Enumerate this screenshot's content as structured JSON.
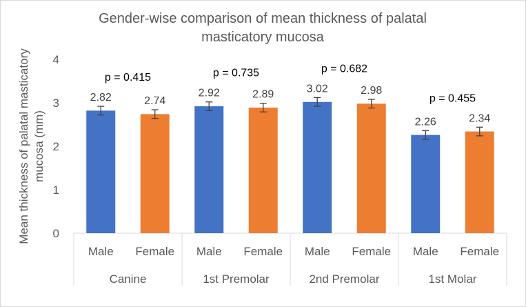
{
  "chart_data": {
    "type": "bar",
    "title_lines": [
      "Gender-wise comparison of mean thickness of palatal",
      "masticatory mucosa"
    ],
    "ylabel_lines": [
      "Mean thickness of palatal masticatory",
      "mucosa (mm)"
    ],
    "xlabel": "",
    "ylim": [
      0,
      4
    ],
    "yticks": [
      0,
      1,
      2,
      3,
      4
    ],
    "grid": false,
    "groups": [
      {
        "name": "Canine",
        "p_value": "p = 0.415",
        "bars": [
          {
            "label": "Male",
            "value": 2.82,
            "value_label": "2.82",
            "error": 0.1,
            "color": "#4472C4"
          },
          {
            "label": "Female",
            "value": 2.74,
            "value_label": "2.74",
            "error": 0.1,
            "color": "#ED7D31"
          }
        ]
      },
      {
        "name": "1st Premolar",
        "p_value": "p = 0.735",
        "bars": [
          {
            "label": "Male",
            "value": 2.92,
            "value_label": "2.92",
            "error": 0.1,
            "color": "#4472C4"
          },
          {
            "label": "Female",
            "value": 2.89,
            "value_label": "2.89",
            "error": 0.1,
            "color": "#ED7D31"
          }
        ]
      },
      {
        "name": "2nd Premolar",
        "p_value": "p = 0.682",
        "bars": [
          {
            "label": "Male",
            "value": 3.02,
            "value_label": "3.02",
            "error": 0.1,
            "color": "#4472C4"
          },
          {
            "label": "Female",
            "value": 2.98,
            "value_label": "2.98",
            "error": 0.1,
            "color": "#ED7D31"
          }
        ]
      },
      {
        "name": "1st Molar",
        "p_value": "p = 0.455",
        "bars": [
          {
            "label": "Male",
            "value": 2.26,
            "value_label": "2.26",
            "error": 0.1,
            "color": "#4472C4"
          },
          {
            "label": "Female",
            "value": 2.34,
            "value_label": "2.34",
            "error": 0.1,
            "color": "#ED7D31"
          }
        ]
      }
    ]
  }
}
